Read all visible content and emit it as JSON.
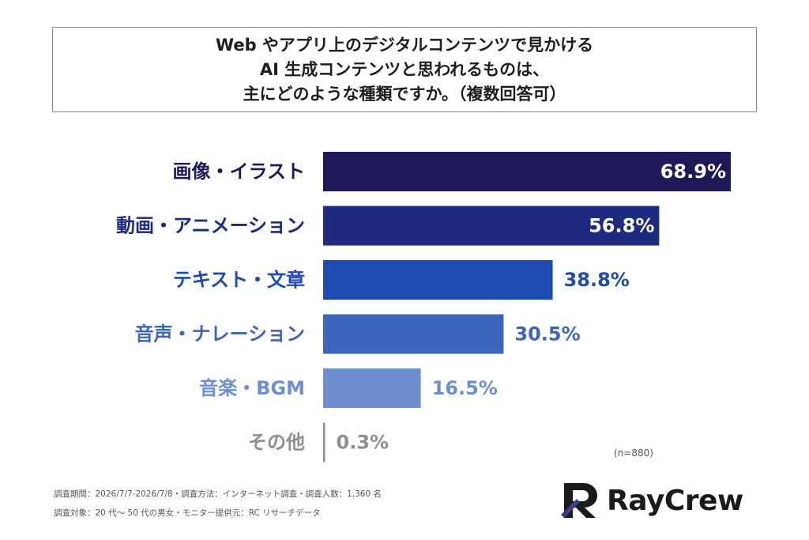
{
  "title": {
    "lines": [
      "Web やアプリ上のデジタルコンテンツで見かける",
      "AI 生成コンテンツと思われるものは、",
      "主にどのような種類ですか。（複数回答可）"
    ]
  },
  "chart_data": {
    "type": "bar",
    "orientation": "horizontal",
    "categories": [
      "画像・イラスト",
      "動画・アニメーション",
      "テキスト・文章",
      "音声・ナレーション",
      "音楽・BGM",
      "その他"
    ],
    "values": [
      68.9,
      56.8,
      38.8,
      30.5,
      16.5,
      0.3
    ],
    "value_labels": [
      "68.9%",
      "56.8%",
      "38.8%",
      "30.5%",
      "16.5%",
      "0.3%"
    ],
    "colors": [
      "#1e1a57",
      "#1d2a80",
      "#1d4bb2",
      "#3c66bb",
      "#6e8fcf",
      "#8f8f8f"
    ],
    "label_colors": [
      "#1e1a57",
      "#1d2a80",
      "#1d4bb2",
      "#3c66bb",
      "#6e8fcf",
      "#8f8f8f"
    ],
    "xlim": [
      0,
      70
    ]
  },
  "sample_note": "(n=880)",
  "footer": {
    "line1": "調査期間：2026/7/7-2026/7/8・調査方法：インターネット調査・調査人数：1,360 名",
    "line2": "調査対象：20 代〜 50 代の男女・モニター提供元：RC リサーチデータ"
  },
  "logo": {
    "text": "RayCrew",
    "icon": "raycrew-r-logo-icon",
    "color": "#1a1a1a",
    "accent": "#3c3c8c"
  }
}
